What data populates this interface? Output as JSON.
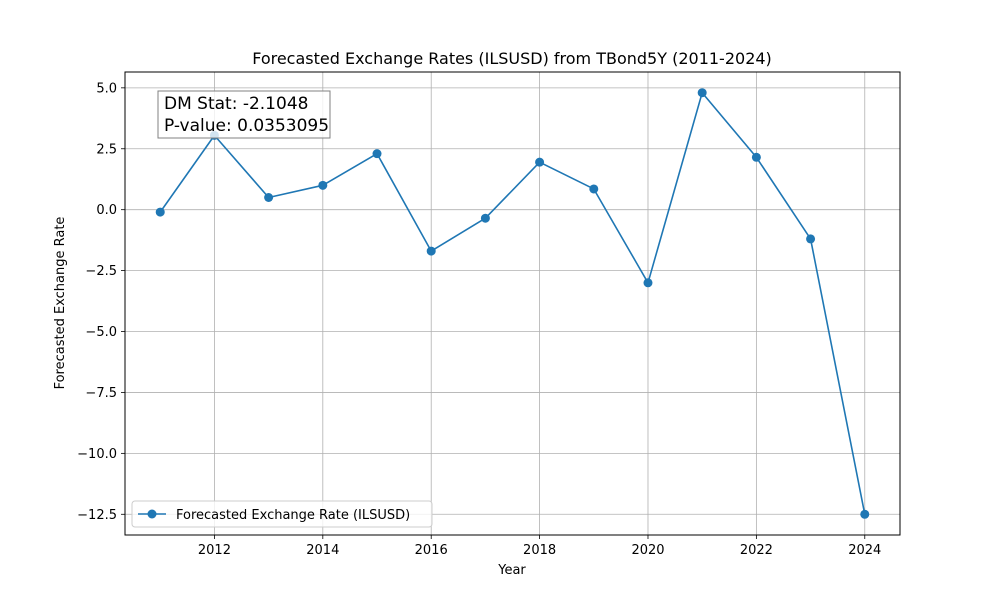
{
  "chart_data": {
    "type": "line",
    "title": "Forecasted Exchange Rates (ILSUSD) from TBond5Y (2011-2024)",
    "xlabel": "Year",
    "ylabel": "Forecasted Exchange Rate",
    "xlim": [
      2010.35,
      2024.65
    ],
    "ylim": [
      -13.35,
      5.65
    ],
    "xticks": [
      2012,
      2014,
      2016,
      2018,
      2020,
      2022,
      2024
    ],
    "yticks": [
      5.0,
      2.5,
      0.0,
      -2.5,
      -5.0,
      -7.5,
      -10.0,
      -12.5
    ],
    "ytick_labels": [
      "5.0",
      "2.5",
      "0.0",
      "−2.5",
      "−5.0",
      "−7.5",
      "−10.0",
      "−12.5"
    ],
    "grid": true,
    "legend_position": "lower-left",
    "series": [
      {
        "name": "Forecasted Exchange Rate (ILSUSD)",
        "color": "#1f77b4",
        "marker": "circle",
        "x": [
          2011,
          2012,
          2013,
          2014,
          2015,
          2016,
          2017,
          2018,
          2019,
          2020,
          2021,
          2022,
          2023,
          2024
        ],
        "y": [
          -0.1,
          3.05,
          0.5,
          1.0,
          2.3,
          -1.7,
          -0.35,
          1.95,
          0.85,
          -3.0,
          4.8,
          2.15,
          -1.2,
          -12.5
        ]
      }
    ],
    "annotation": {
      "line1": "DM Stat: -2.1048",
      "line2": "P-value: 0.0353095"
    }
  }
}
